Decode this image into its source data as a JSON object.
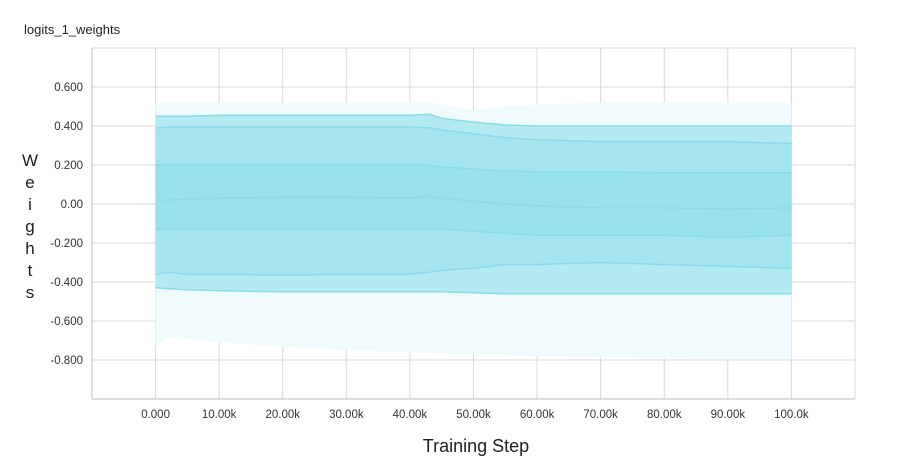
{
  "chart_data": {
    "type": "area",
    "title": "logits_1_weights",
    "xlabel": "Training Step",
    "ylabel": "Weights",
    "x_ticks": [
      "0.000",
      "10.00k",
      "20.00k",
      "30.00k",
      "40.00k",
      "50.00k",
      "60.00k",
      "70.00k",
      "80.00k",
      "90.00k",
      "100.0k"
    ],
    "y_ticks": [
      "0.600",
      "0.400",
      "0.200",
      "0.00",
      "-0.200",
      "-0.400",
      "-0.600",
      "-0.800"
    ],
    "xlim": [
      -10000,
      110000
    ],
    "ylim": [
      -1.0,
      0.8
    ],
    "grid": true,
    "colors": {
      "band_outer": "#effbfd",
      "band_2": "#b4eaf2",
      "band_3": "#a5e5ef",
      "band_inner": "#98e0ec",
      "line": "#8adbe9"
    },
    "x": [
      0,
      2000,
      5000,
      10000,
      20000,
      30000,
      40000,
      43000,
      45000,
      50000,
      55000,
      60000,
      70000,
      80000,
      90000,
      100000
    ],
    "series": [
      {
        "values": [
          -0.74,
          -0.68,
          -0.69,
          -0.71,
          -0.73,
          -0.75,
          -0.76,
          -0.76,
          -0.765,
          -0.77,
          -0.775,
          -0.78,
          -0.785,
          -0.79,
          -0.795,
          -0.795
        ]
      },
      {
        "values": [
          -0.43,
          -0.435,
          -0.44,
          -0.445,
          -0.45,
          -0.45,
          -0.45,
          -0.45,
          -0.45,
          -0.455,
          -0.46,
          -0.46,
          -0.46,
          -0.46,
          -0.46,
          -0.46
        ]
      },
      {
        "values": [
          -0.36,
          -0.35,
          -0.36,
          -0.36,
          -0.365,
          -0.36,
          -0.36,
          -0.35,
          -0.34,
          -0.33,
          -0.31,
          -0.31,
          -0.3,
          -0.31,
          -0.32,
          -0.33
        ]
      },
      {
        "values": [
          -0.13,
          -0.13,
          -0.13,
          -0.13,
          -0.13,
          -0.13,
          -0.13,
          -0.13,
          -0.13,
          -0.14,
          -0.15,
          -0.16,
          -0.16,
          -0.16,
          -0.17,
          -0.16
        ]
      },
      {
        "values": [
          0.02,
          0.02,
          0.025,
          0.03,
          0.035,
          0.035,
          0.03,
          0.04,
          0.03,
          0.015,
          0.0,
          -0.01,
          -0.02,
          -0.02,
          -0.025,
          -0.02
        ]
      },
      {
        "values": [
          0.2,
          0.2,
          0.2,
          0.2,
          0.2,
          0.2,
          0.2,
          0.2,
          0.19,
          0.18,
          0.17,
          0.165,
          0.165,
          0.16,
          0.16,
          0.16
        ]
      },
      {
        "values": [
          0.39,
          0.395,
          0.395,
          0.395,
          0.395,
          0.395,
          0.395,
          0.39,
          0.38,
          0.36,
          0.34,
          0.33,
          0.32,
          0.32,
          0.32,
          0.31
        ]
      },
      {
        "values": [
          0.45,
          0.45,
          0.45,
          0.455,
          0.455,
          0.455,
          0.455,
          0.46,
          0.44,
          0.42,
          0.405,
          0.4,
          0.4,
          0.4,
          0.4,
          0.4
        ]
      },
      {
        "values": [
          0.52,
          0.52,
          0.52,
          0.52,
          0.52,
          0.52,
          0.52,
          0.52,
          0.51,
          0.48,
          0.5,
          0.51,
          0.52,
          0.52,
          0.52,
          0.52
        ]
      }
    ]
  }
}
